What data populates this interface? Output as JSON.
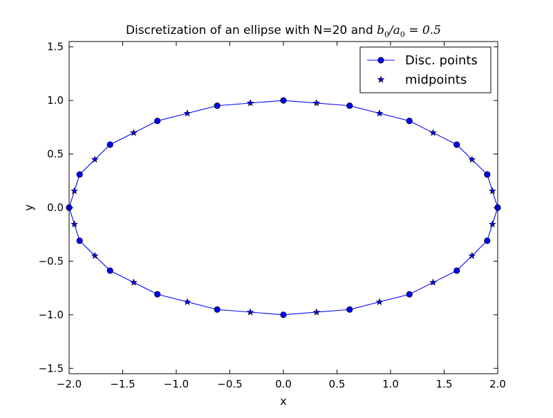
{
  "chart_data": {
    "type": "line",
    "title": {
      "prefix": "Discretization of an ellipse with N=20 and ",
      "math_b": "b",
      "math_b_sub": "0",
      "math_sep": "/",
      "math_a": "a",
      "math_a_sub": "0",
      "math_eq": "= 0.5"
    },
    "xlabel": "x",
    "ylabel": "y",
    "xlim": [
      -2.0,
      2.0
    ],
    "ylim": [
      -1.55,
      1.55
    ],
    "xticks": [
      -2.0,
      -1.5,
      -1.0,
      -0.5,
      0.0,
      0.5,
      1.0,
      1.5,
      2.0
    ],
    "xtick_labels": [
      "−2.0",
      "−1.5",
      "−1.0",
      "−0.5",
      "0.0",
      "0.5",
      "1.0",
      "1.5",
      "2.0"
    ],
    "yticks": [
      -1.5,
      -1.0,
      -0.5,
      0.0,
      0.5,
      1.0,
      1.5
    ],
    "ytick_labels": [
      "−1.5",
      "−1.0",
      "−0.5",
      "0.0",
      "0.5",
      "1.0",
      "1.5"
    ],
    "legend_position": "top-right",
    "color": "#0000ff",
    "series": [
      {
        "name": "Disc. points",
        "marker": "circle",
        "line": true,
        "x": [
          2.0,
          1.902,
          1.618,
          1.176,
          0.618,
          0.0,
          -0.618,
          -1.176,
          -1.618,
          -1.902,
          -2.0,
          -1.902,
          -1.618,
          -1.176,
          -0.618,
          0.0,
          0.618,
          1.176,
          1.618,
          1.902,
          2.0
        ],
        "y": [
          0.0,
          0.309,
          0.588,
          0.809,
          0.951,
          1.0,
          0.951,
          0.809,
          0.588,
          0.309,
          0.0,
          -0.309,
          -0.588,
          -0.809,
          -0.951,
          -1.0,
          -0.951,
          -0.809,
          -0.588,
          -0.309,
          0.0
        ]
      },
      {
        "name": "midpoints",
        "marker": "star",
        "line": false,
        "x": [
          1.951,
          1.76,
          1.397,
          0.897,
          0.309,
          -0.309,
          -0.897,
          -1.397,
          -1.76,
          -1.951,
          -1.951,
          -1.76,
          -1.397,
          -0.897,
          -0.309,
          0.309,
          0.897,
          1.397,
          1.76,
          1.951
        ],
        "y": [
          0.155,
          0.449,
          0.698,
          0.88,
          0.976,
          0.976,
          0.88,
          0.698,
          0.449,
          0.155,
          -0.155,
          -0.449,
          -0.698,
          -0.88,
          -0.976,
          -0.976,
          -0.88,
          -0.698,
          -0.449,
          -0.155
        ]
      }
    ]
  }
}
